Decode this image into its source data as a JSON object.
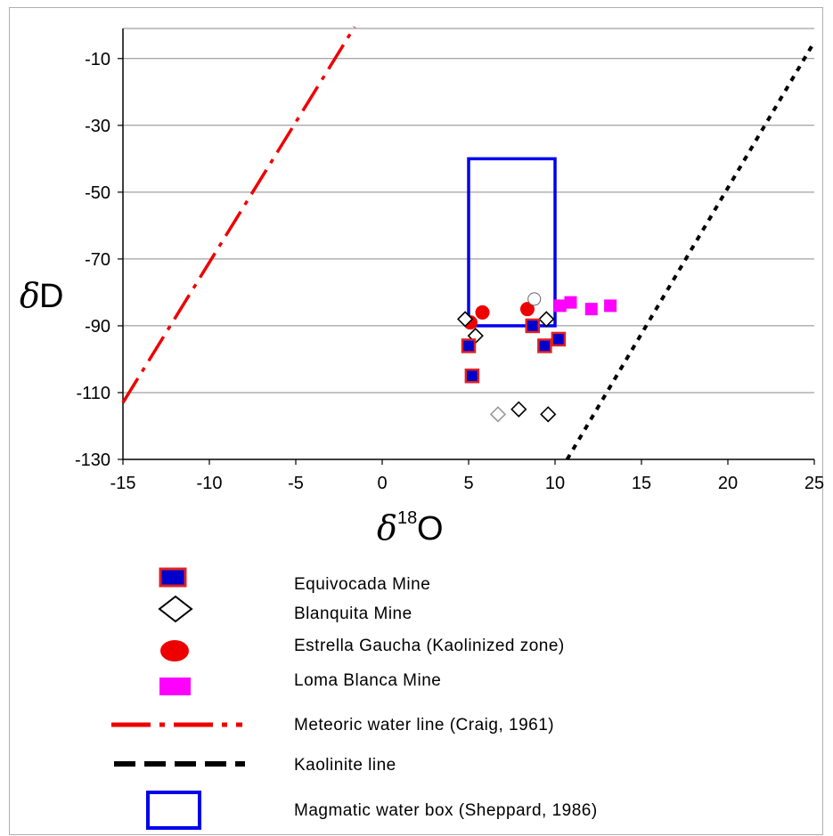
{
  "chart_data": {
    "type": "scatter",
    "xlabel": {
      "symbol": "δ",
      "superscript": "18",
      "main": "O"
    },
    "ylabel": {
      "symbol": "δ",
      "main": "D"
    },
    "xlim": [
      -15,
      25
    ],
    "ylim": [
      -130,
      -1
    ],
    "x_ticks": [
      -15,
      -10,
      -5,
      0,
      5,
      10,
      15,
      20,
      25
    ],
    "y_ticks": [
      -10,
      -30,
      -50,
      -70,
      -90,
      -110,
      -130
    ],
    "y_grid": true,
    "legend_position": "bottom",
    "series": [
      {
        "name": "Equivocada Mine",
        "marker": "square",
        "color": "#0000cc",
        "edge": "#dd2222",
        "points": [
          [
            5.0,
            -96
          ],
          [
            5.2,
            -105
          ],
          [
            8.7,
            -90
          ],
          [
            9.4,
            -96
          ],
          [
            10.2,
            -94
          ]
        ]
      },
      {
        "name": "Blanquita Mine",
        "marker": "diamond",
        "color": "#ffffff",
        "edge": "#000000",
        "points": [
          [
            4.8,
            -88
          ],
          [
            5.4,
            -93
          ],
          [
            9.5,
            -88
          ],
          [
            6.7,
            -116.5
          ],
          [
            7.9,
            -115
          ],
          [
            9.6,
            -116.5
          ]
        ]
      },
      {
        "name": "Estrella Gaucha (Kaolinized zone)",
        "marker": "circle",
        "color": "#ee0000",
        "points": [
          [
            5.1,
            -89
          ],
          [
            5.8,
            -86
          ],
          [
            8.4,
            -85
          ],
          [
            8.8,
            -82
          ]
        ]
      },
      {
        "name": "Loma Blanca Mine",
        "marker": "square",
        "color": "#ff00ff",
        "points": [
          [
            10.3,
            -84
          ],
          [
            10.9,
            -83
          ],
          [
            12.1,
            -85
          ],
          [
            13.2,
            -84
          ]
        ]
      }
    ],
    "lines": [
      {
        "name": "Meteoric water line (Craig, 1961)",
        "style": "dash-dot",
        "color": "#ee0000",
        "points": [
          [
            -15,
            -113
          ],
          [
            -1.6,
            -0.5
          ]
        ]
      },
      {
        "name": "Kaolinite line",
        "style": "dotted",
        "color": "#000000",
        "points": [
          [
            10.7,
            -130
          ],
          [
            25,
            -5
          ]
        ]
      }
    ],
    "boxes": [
      {
        "name": "Magmatic water box (Sheppard, 1986)",
        "color": "#0000ee",
        "x": [
          5,
          10
        ],
        "y": [
          -90,
          -40
        ]
      }
    ]
  }
}
